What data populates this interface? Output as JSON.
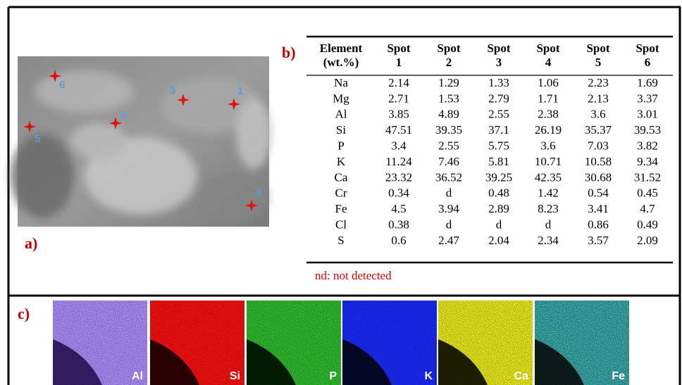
{
  "panels": {
    "a": "a)",
    "b": "b)",
    "c": "c)"
  },
  "sem_image": {
    "spot_labels": [
      "1",
      "2",
      "3",
      "4",
      "5",
      "6"
    ]
  },
  "table": {
    "header": [
      [
        "Element",
        "(wt.%)"
      ],
      [
        "Spot",
        "1"
      ],
      [
        "Spot",
        "2"
      ],
      [
        "Spot",
        "3"
      ],
      [
        "Spot",
        "4"
      ],
      [
        "Spot",
        "5"
      ],
      [
        "Spot",
        "6"
      ]
    ],
    "rows": [
      [
        "Na",
        "2.14",
        "1.29",
        "1.33",
        "1.06",
        "2.23",
        "1.69"
      ],
      [
        "Mg",
        "2.71",
        "1.53",
        "2.79",
        "1.71",
        "2.13",
        "3.37"
      ],
      [
        "Al",
        "3.85",
        "4.89",
        "2.55",
        "2.38",
        "3.6",
        "3.01"
      ],
      [
        "Si",
        "47.51",
        "39.35",
        "37.1",
        "26.19",
        "35.37",
        "39.53"
      ],
      [
        "P",
        "3.4",
        "2.55",
        "5.75",
        "3.6",
        "7.03",
        "3.82"
      ],
      [
        "K",
        "11.24",
        "7.46",
        "5.81",
        "10.71",
        "10.58",
        "9.34"
      ],
      [
        "Ca",
        "23.32",
        "36.52",
        "39.25",
        "42.35",
        "30.68",
        "31.52"
      ],
      [
        "Cr",
        "0.34",
        "d",
        "0.48",
        "1.42",
        "0.54",
        "0.45"
      ],
      [
        "Fe",
        "4.5",
        "3.94",
        "2.89",
        "8.23",
        "3.41",
        "4.7"
      ],
      [
        "Cl",
        "0.38",
        "d",
        "d",
        "d",
        "0.86",
        "0.49"
      ],
      [
        "S",
        "0.6",
        "2.47",
        "2.04",
        "2.34",
        "3.57",
        "2.09"
      ]
    ],
    "note": "nd: not detected"
  },
  "maps": {
    "labels": [
      "Al",
      "Si",
      "P",
      "K",
      "Ca",
      "Fe"
    ]
  }
}
